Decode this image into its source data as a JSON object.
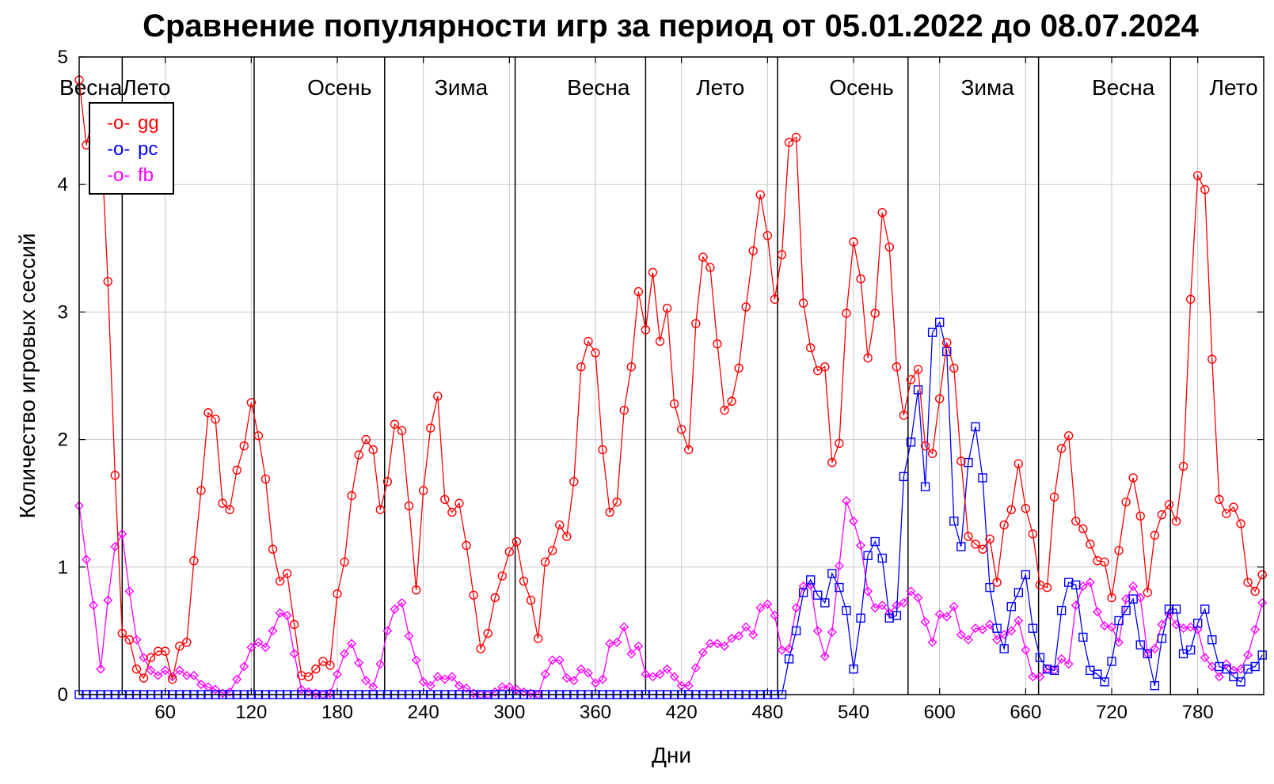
{
  "chart_data": {
    "type": "line",
    "title": "Сравнение популярности игр за период от 05.01.2022 до 08.07.2024",
    "xlabel": "Дни",
    "ylabel": "Количество игровых сессий",
    "xlim": [
      0,
      826
    ],
    "ylim": [
      0,
      5
    ],
    "xticks": [
      60,
      120,
      180,
      240,
      300,
      360,
      420,
      480,
      540,
      600,
      660,
      720,
      780
    ],
    "yticks": [
      0,
      1,
      2,
      3,
      4,
      5
    ],
    "grid": true,
    "legend_position": "top-left",
    "season_dividers": [
      30,
      122,
      213,
      304,
      395,
      487,
      578,
      669,
      761
    ],
    "season_labels": [
      {
        "label": "Весна",
        "x": 30,
        "align": "end"
      },
      {
        "label": "Лето",
        "x": 30,
        "align": "start"
      },
      {
        "label": "Осень",
        "x": 204,
        "align": "end"
      },
      {
        "label": "Зима",
        "x": 285,
        "align": "end"
      },
      {
        "label": "Весна",
        "x": 384,
        "align": "end"
      },
      {
        "label": "Лето",
        "x": 464,
        "align": "end"
      },
      {
        "label": "Осень",
        "x": 568,
        "align": "end"
      },
      {
        "label": "Зима",
        "x": 652,
        "align": "end"
      },
      {
        "label": "Весна",
        "x": 750,
        "align": "end"
      },
      {
        "label": "Лето",
        "x": 822,
        "align": "end"
      }
    ],
    "series": [
      {
        "name": "gg",
        "color": "#ff0000",
        "marker": "circle",
        "x": [
          0,
          5,
          10,
          15,
          20,
          25,
          30,
          35,
          40,
          45,
          50,
          55,
          60,
          65,
          70,
          75,
          80,
          85,
          90,
          95,
          100,
          105,
          110,
          115,
          120,
          125,
          130,
          135,
          140,
          145,
          150,
          155,
          160,
          165,
          170,
          175,
          180,
          185,
          190,
          195,
          200,
          205,
          210,
          215,
          220,
          225,
          230,
          235,
          240,
          245,
          250,
          255,
          260,
          265,
          270,
          275,
          280,
          285,
          290,
          295,
          300,
          305,
          310,
          315,
          320,
          325,
          330,
          335,
          340,
          345,
          350,
          355,
          360,
          365,
          370,
          375,
          380,
          385,
          390,
          395,
          400,
          405,
          410,
          415,
          420,
          425,
          430,
          435,
          440,
          445,
          450,
          455,
          460,
          465,
          470,
          475,
          480,
          485,
          490,
          495,
          500,
          505,
          510,
          515,
          520,
          525,
          530,
          535,
          540,
          545,
          550,
          555,
          560,
          565,
          570,
          575,
          580,
          585,
          590,
          595,
          600,
          605,
          610,
          615,
          620,
          625,
          630,
          635,
          640,
          645,
          650,
          655,
          660,
          665,
          670,
          675,
          680,
          685,
          690,
          695,
          700,
          705,
          710,
          715,
          720,
          725,
          730,
          735,
          740,
          745,
          750,
          755,
          760,
          765,
          770,
          775,
          780,
          785,
          790,
          795,
          800,
          805,
          810,
          815,
          820,
          825
        ],
        "values": [
          4.82,
          4.31,
          4.55,
          4.45,
          3.24,
          1.72,
          0.48,
          0.43,
          0.2,
          0.13,
          0.29,
          0.34,
          0.34,
          0.12,
          0.38,
          0.41,
          1.05,
          1.6,
          2.21,
          2.16,
          1.5,
          1.45,
          1.76,
          1.95,
          2.29,
          2.03,
          1.69,
          1.14,
          0.89,
          0.95,
          0.55,
          0.15,
          0.14,
          0.2,
          0.26,
          0.23,
          0.79,
          1.04,
          1.56,
          1.88,
          2.0,
          1.92,
          1.45,
          1.67,
          2.12,
          2.07,
          1.48,
          0.82,
          1.6,
          2.09,
          2.34,
          1.53,
          1.43,
          1.5,
          1.17,
          0.78,
          0.36,
          0.48,
          0.76,
          0.93,
          1.12,
          1.2,
          0.89,
          0.74,
          0.44,
          1.04,
          1.13,
          1.33,
          1.24,
          1.67,
          2.57,
          2.77,
          2.68,
          1.92,
          1.43,
          1.51,
          2.23,
          2.57,
          3.16,
          2.86,
          3.31,
          2.77,
          3.03,
          2.28,
          2.08,
          1.92,
          2.91,
          3.43,
          3.35,
          2.75,
          2.23,
          2.3,
          2.56,
          3.04,
          3.48,
          3.92,
          3.6,
          3.1,
          3.45,
          4.33,
          4.37,
          3.07,
          2.72,
          2.54,
          2.57,
          1.82,
          1.97,
          2.99,
          3.55,
          3.26,
          2.64,
          2.99,
          3.78,
          3.51,
          2.57,
          2.19,
          2.47,
          2.55,
          1.95,
          1.89,
          2.32,
          2.76,
          2.56,
          1.83,
          1.24,
          1.18,
          1.14,
          1.22,
          0.88,
          1.33,
          1.45,
          1.81,
          1.46,
          1.26,
          0.86,
          0.84,
          1.55,
          1.93,
          2.03,
          1.36,
          1.3,
          1.18,
          1.05,
          1.04,
          0.76,
          1.13,
          1.51,
          1.7,
          1.4,
          0.8,
          1.25,
          1.41,
          1.49,
          1.36,
          1.79,
          3.1,
          4.07,
          3.96,
          2.63,
          1.53,
          1.42,
          1.47,
          1.34,
          0.88,
          0.81,
          0.94
        ]
      },
      {
        "name": "pc",
        "color": "#0000ff",
        "marker": "square",
        "x": [
          0,
          5,
          10,
          15,
          20,
          25,
          30,
          35,
          40,
          45,
          50,
          55,
          60,
          65,
          70,
          75,
          80,
          85,
          90,
          95,
          100,
          105,
          110,
          115,
          120,
          125,
          130,
          135,
          140,
          145,
          150,
          155,
          160,
          165,
          170,
          175,
          180,
          185,
          190,
          195,
          200,
          205,
          210,
          215,
          220,
          225,
          230,
          235,
          240,
          245,
          250,
          255,
          260,
          265,
          270,
          275,
          280,
          285,
          290,
          295,
          300,
          305,
          310,
          315,
          320,
          325,
          330,
          335,
          340,
          345,
          350,
          355,
          360,
          365,
          370,
          375,
          380,
          385,
          390,
          395,
          400,
          405,
          410,
          415,
          420,
          425,
          430,
          435,
          440,
          445,
          450,
          455,
          460,
          465,
          470,
          475,
          480,
          485,
          490,
          495,
          500,
          505,
          510,
          515,
          520,
          525,
          530,
          535,
          540,
          545,
          550,
          555,
          560,
          565,
          570,
          575,
          580,
          585,
          590,
          595,
          600,
          605,
          610,
          615,
          620,
          625,
          630,
          635,
          640,
          645,
          650,
          655,
          660,
          665,
          670,
          675,
          680,
          685,
          690,
          695,
          700,
          705,
          710,
          715,
          720,
          725,
          730,
          735,
          740,
          745,
          750,
          755,
          760,
          765,
          770,
          775,
          780,
          785,
          790,
          795,
          800,
          805,
          810,
          815,
          820,
          825
        ],
        "values": [
          0,
          0,
          0,
          0,
          0,
          0,
          0,
          0,
          0,
          0,
          0,
          0,
          0,
          0,
          0,
          0,
          0,
          0,
          0,
          0,
          0,
          0,
          0,
          0,
          0,
          0,
          0,
          0,
          0,
          0,
          0,
          0,
          0,
          0,
          0,
          0,
          0,
          0,
          0,
          0,
          0,
          0,
          0,
          0,
          0,
          0,
          0,
          0,
          0,
          0,
          0,
          0,
          0,
          0,
          0,
          0,
          0,
          0,
          0,
          0,
          0,
          0,
          0,
          0,
          0,
          0,
          0,
          0,
          0,
          0,
          0,
          0,
          0,
          0,
          0,
          0,
          0,
          0,
          0,
          0,
          0,
          0,
          0,
          0,
          0,
          0,
          0,
          0,
          0,
          0,
          0,
          0,
          0,
          0,
          0,
          0,
          0,
          0,
          0,
          0.28,
          0.5,
          0.8,
          0.9,
          0.78,
          0.72,
          0.95,
          0.84,
          0.66,
          0.2,
          0.6,
          1.09,
          1.2,
          1.07,
          0.6,
          0.62,
          1.71,
          1.98,
          2.39,
          1.63,
          2.84,
          2.92,
          2.69,
          1.36,
          1.16,
          1.82,
          2.1,
          1.7,
          0.84,
          0.52,
          0.36,
          0.69,
          0.8,
          0.94,
          0.52,
          0.29,
          0.2,
          0.19,
          0.66,
          0.88,
          0.86,
          0.45,
          0.19,
          0.16,
          0.1,
          0.26,
          0.58,
          0.66,
          0.75,
          0.39,
          0.32,
          0.07,
          0.44,
          0.67,
          0.67,
          0.32,
          0.35,
          0.56,
          0.67,
          0.43,
          0.22,
          0.2,
          0.14,
          0.1,
          0.2,
          0.22,
          0.31
        ]
      },
      {
        "name": "fb",
        "color": "#ff00ff",
        "marker": "diamond",
        "x": [
          0,
          5,
          10,
          15,
          20,
          25,
          30,
          35,
          40,
          45,
          50,
          55,
          60,
          65,
          70,
          75,
          80,
          85,
          90,
          95,
          100,
          105,
          110,
          115,
          120,
          125,
          130,
          135,
          140,
          145,
          150,
          155,
          160,
          165,
          170,
          175,
          180,
          185,
          190,
          195,
          200,
          205,
          210,
          215,
          220,
          225,
          230,
          235,
          240,
          245,
          250,
          255,
          260,
          265,
          270,
          275,
          280,
          285,
          290,
          295,
          300,
          305,
          310,
          315,
          320,
          325,
          330,
          335,
          340,
          345,
          350,
          355,
          360,
          365,
          370,
          375,
          380,
          385,
          390,
          395,
          400,
          405,
          410,
          415,
          420,
          425,
          430,
          435,
          440,
          445,
          450,
          455,
          460,
          465,
          470,
          475,
          480,
          485,
          490,
          495,
          500,
          505,
          510,
          515,
          520,
          525,
          530,
          535,
          540,
          545,
          550,
          555,
          560,
          565,
          570,
          575,
          580,
          585,
          590,
          595,
          600,
          605,
          610,
          615,
          620,
          625,
          630,
          635,
          640,
          645,
          650,
          655,
          660,
          665,
          670,
          675,
          680,
          685,
          690,
          695,
          700,
          705,
          710,
          715,
          720,
          725,
          730,
          735,
          740,
          745,
          750,
          755,
          760,
          765,
          770,
          775,
          780,
          785,
          790,
          795,
          800,
          805,
          810,
          815,
          820,
          825
        ],
        "values": [
          1.48,
          1.06,
          0.7,
          0.2,
          0.74,
          1.16,
          1.26,
          0.81,
          0.43,
          0.29,
          0.19,
          0.15,
          0.19,
          0.14,
          0.19,
          0.15,
          0.15,
          0.08,
          0.06,
          0.04,
          0.01,
          0.02,
          0.12,
          0.22,
          0.37,
          0.41,
          0.37,
          0.5,
          0.64,
          0.62,
          0.32,
          0.04,
          0.02,
          0.01,
          0.0,
          0.01,
          0.16,
          0.32,
          0.4,
          0.25,
          0.11,
          0.06,
          0.24,
          0.5,
          0.67,
          0.72,
          0.46,
          0.27,
          0.1,
          0.07,
          0.14,
          0.12,
          0.14,
          0.07,
          0.05,
          0.01,
          0.0,
          0.0,
          0.02,
          0.06,
          0.06,
          0.04,
          0.02,
          0.01,
          0.0,
          0.16,
          0.27,
          0.27,
          0.13,
          0.11,
          0.2,
          0.17,
          0.09,
          0.12,
          0.4,
          0.41,
          0.53,
          0.32,
          0.38,
          0.16,
          0.14,
          0.16,
          0.2,
          0.14,
          0.07,
          0.07,
          0.21,
          0.33,
          0.4,
          0.4,
          0.38,
          0.44,
          0.46,
          0.53,
          0.47,
          0.68,
          0.71,
          0.62,
          0.35,
          0.36,
          0.68,
          0.85,
          0.86,
          0.5,
          0.3,
          0.49,
          1.01,
          1.52,
          1.36,
          1.17,
          0.81,
          0.68,
          0.7,
          0.64,
          0.7,
          0.72,
          0.81,
          0.76,
          0.57,
          0.41,
          0.63,
          0.61,
          0.69,
          0.47,
          0.43,
          0.52,
          0.51,
          0.55,
          0.43,
          0.47,
          0.5,
          0.58,
          0.35,
          0.14,
          0.14,
          0.2,
          0.19,
          0.28,
          0.24,
          0.7,
          0.85,
          0.88,
          0.65,
          0.54,
          0.53,
          0.41,
          0.75,
          0.85,
          0.76,
          0.32,
          0.36,
          0.55,
          0.63,
          0.55,
          0.52,
          0.53,
          0.51,
          0.29,
          0.22,
          0.14,
          0.24,
          0.19,
          0.2,
          0.31,
          0.51,
          0.72
        ]
      }
    ]
  }
}
